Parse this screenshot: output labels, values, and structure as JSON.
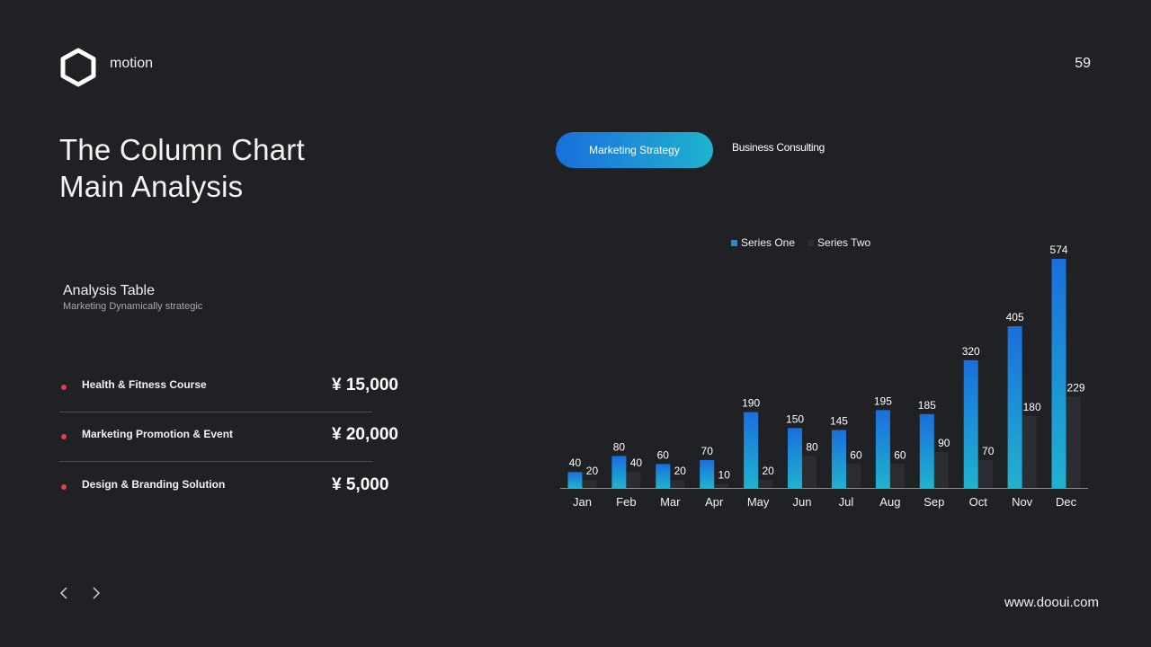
{
  "brand": "motion",
  "page_number": "59",
  "title_lines": [
    "The Column Chart",
    "Main Analysis"
  ],
  "table": {
    "title": "Analysis Table",
    "subtitle": "Marketing Dynamically strategic",
    "rows": [
      {
        "label": "Health & Fitness Course",
        "price": "¥ 15,000"
      },
      {
        "label": "Marketing Promotion & Event",
        "price": "¥ 20,000"
      },
      {
        "label": "Design & Branding  Solution",
        "price": "¥ 5,000"
      }
    ]
  },
  "tabs": {
    "active": "Marketing Strategy",
    "inactive": "Business Consulting"
  },
  "footer_url": "www.dooui.com",
  "icons": {
    "logo": "hexagon-logo-icon",
    "prev": "chevron-left-icon",
    "next": "chevron-right-icon"
  },
  "colors": {
    "background": "#202124",
    "accent_blue": "#1a6fdc",
    "accent_teal": "#1fb3cf",
    "bullet": "#e23a4f",
    "series_two": "#2c2d32"
  },
  "chart_data": {
    "type": "bar",
    "categories": [
      "Jan",
      "Feb",
      "Mar",
      "Apr",
      "May",
      "Jun",
      "Jul",
      "Aug",
      "Sep",
      "Oct",
      "Nov",
      "Dec"
    ],
    "series": [
      {
        "name": "Series One",
        "values": [
          40,
          80,
          60,
          70,
          190,
          150,
          145,
          195,
          185,
          320,
          405,
          574
        ]
      },
      {
        "name": "Series Two",
        "values": [
          20,
          40,
          20,
          10,
          20,
          80,
          60,
          60,
          90,
          70,
          180,
          229
        ]
      }
    ],
    "ylim": [
      0,
      600
    ],
    "legend_position": "top",
    "grid": false,
    "data_labels": true
  }
}
